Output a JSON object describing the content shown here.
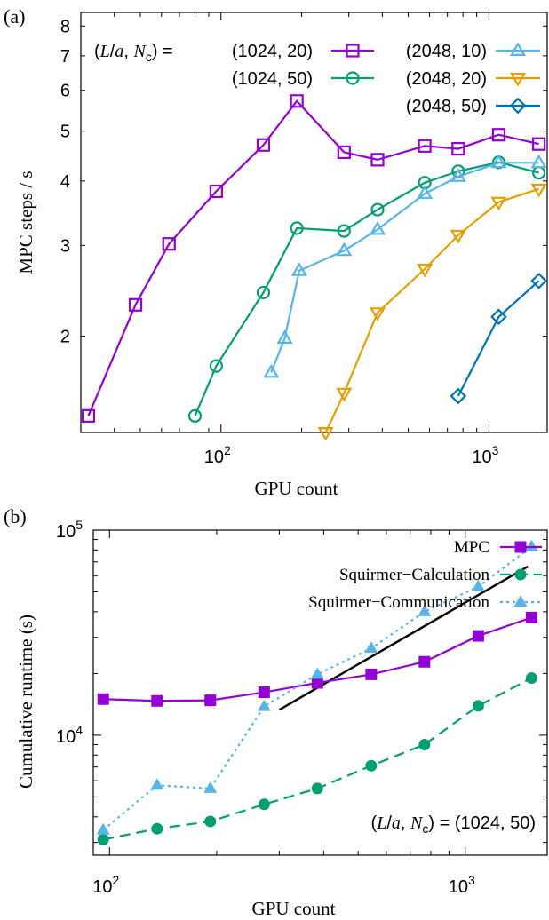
{
  "chart_data": [
    {
      "panel_label": "(a)",
      "type": "line",
      "xscale": "log",
      "yscale": "log",
      "xlabel": "GPU count",
      "ylabel": "MPC steps / s",
      "xlim": [
        30,
        1650
      ],
      "ylim": [
        1.3,
        8.5
      ],
      "x_ticks": [
        {
          "value": 100,
          "base": "10",
          "exp": "2"
        },
        {
          "value": 1000,
          "base": "10",
          "exp": "3"
        }
      ],
      "y_ticks": [
        {
          "value": 2,
          "label": "2"
        },
        {
          "value": 3,
          "label": "3"
        },
        {
          "value": 4,
          "label": "4"
        },
        {
          "value": 5,
          "label": "5"
        },
        {
          "value": 6,
          "label": "6"
        },
        {
          "value": 7,
          "label": "7"
        },
        {
          "value": 8,
          "label": "8"
        }
      ],
      "legend_prefix": [
        "(",
        "L",
        "/",
        "a",
        ", ",
        "N",
        "c",
        ") = "
      ],
      "legend_placement": "top",
      "grid": false,
      "series": [
        {
          "name": "(1024, 20)",
          "color": "#9400d3",
          "marker": "square",
          "x": [
            32,
            48,
            64,
            96,
            144,
            192,
            288,
            384,
            576,
            768,
            1088,
            1536
          ],
          "y": [
            1.4,
            2.3,
            3.02,
            3.82,
            4.7,
            5.72,
            4.55,
            4.4,
            4.68,
            4.62,
            4.92,
            4.72
          ]
        },
        {
          "name": "(1024, 50)",
          "color": "#009e73",
          "marker": "circle",
          "x": [
            80,
            96,
            144,
            192,
            288,
            384,
            576,
            768,
            1088,
            1536
          ],
          "y": [
            1.4,
            1.75,
            2.43,
            3.24,
            3.2,
            3.52,
            3.97,
            4.18,
            4.35,
            4.15
          ]
        },
        {
          "name": "(2048, 10)",
          "color": "#56b4e9",
          "marker": "triangle-up",
          "x": [
            154,
            173,
            196,
            288,
            384,
            576,
            768,
            1088,
            1536
          ],
          "y": [
            1.7,
            1.98,
            2.68,
            2.93,
            3.22,
            3.78,
            4.08,
            4.34,
            4.34
          ]
        },
        {
          "name": "(2048, 20)",
          "color": "#e69f00",
          "marker": "triangle-down",
          "x": [
            246,
            288,
            384,
            576,
            768,
            1088,
            1536
          ],
          "y": [
            1.3,
            1.55,
            2.22,
            2.7,
            3.14,
            3.64,
            3.86
          ]
        },
        {
          "name": "(2048, 50)",
          "color": "#0072b2",
          "marker": "diamond",
          "x": [
            768,
            1088,
            1536
          ],
          "y": [
            1.53,
            2.18,
            2.56
          ]
        }
      ]
    },
    {
      "panel_label": "(b)",
      "type": "line",
      "xscale": "log",
      "yscale": "log",
      "xlabel": "GPU count",
      "ylabel": "Cumulative runtime (s)",
      "xlim": [
        90,
        1700
      ],
      "ylim": [
        2600,
        100000
      ],
      "x_ticks": [
        {
          "value": 100,
          "base": "10",
          "exp": "2"
        },
        {
          "value": 1000,
          "base": "10",
          "exp": "3"
        }
      ],
      "y_ticks": [
        {
          "value": 10000,
          "base": "10",
          "exp": "4"
        },
        {
          "value": 100000,
          "base": "10",
          "exp": "5"
        }
      ],
      "legend_placement": "top-right",
      "annotation_parts": [
        "(",
        "L",
        "/",
        "a",
        ", ",
        "N",
        "c",
        ") = (1024, 50)"
      ],
      "grid": false,
      "series": [
        {
          "name": "MPC",
          "color": "#9400d3",
          "marker": "filled-square",
          "dash": "solid",
          "x": [
            96,
            136,
            192,
            272,
            384,
            544,
            768,
            1088,
            1536
          ],
          "y": [
            15000,
            14700,
            14800,
            16200,
            18000,
            19800,
            22800,
            30500,
            37500
          ]
        },
        {
          "name": "Squirmer−Calculation",
          "color": "#009e73",
          "marker": "filled-circle",
          "dash": "long-dash",
          "x": [
            96,
            136,
            192,
            272,
            384,
            544,
            768,
            1088,
            1536
          ],
          "y": [
            3100,
            3500,
            3800,
            4600,
            5500,
            7100,
            9000,
            13900,
            19000
          ]
        },
        {
          "name": "Squirmer−Communication",
          "color": "#56b4e9",
          "marker": "filled-triangle",
          "dash": "dotted",
          "x": [
            96,
            136,
            192,
            272,
            384,
            544,
            768,
            1088,
            1536
          ],
          "y": [
            3450,
            5700,
            5500,
            13800,
            19800,
            26500,
            40000,
            53000,
            83000
          ]
        }
      ],
      "reference_line": {
        "color": "#000000",
        "x": [
          300,
          1500
        ],
        "y": [
          13300,
          66500
        ]
      }
    }
  ]
}
